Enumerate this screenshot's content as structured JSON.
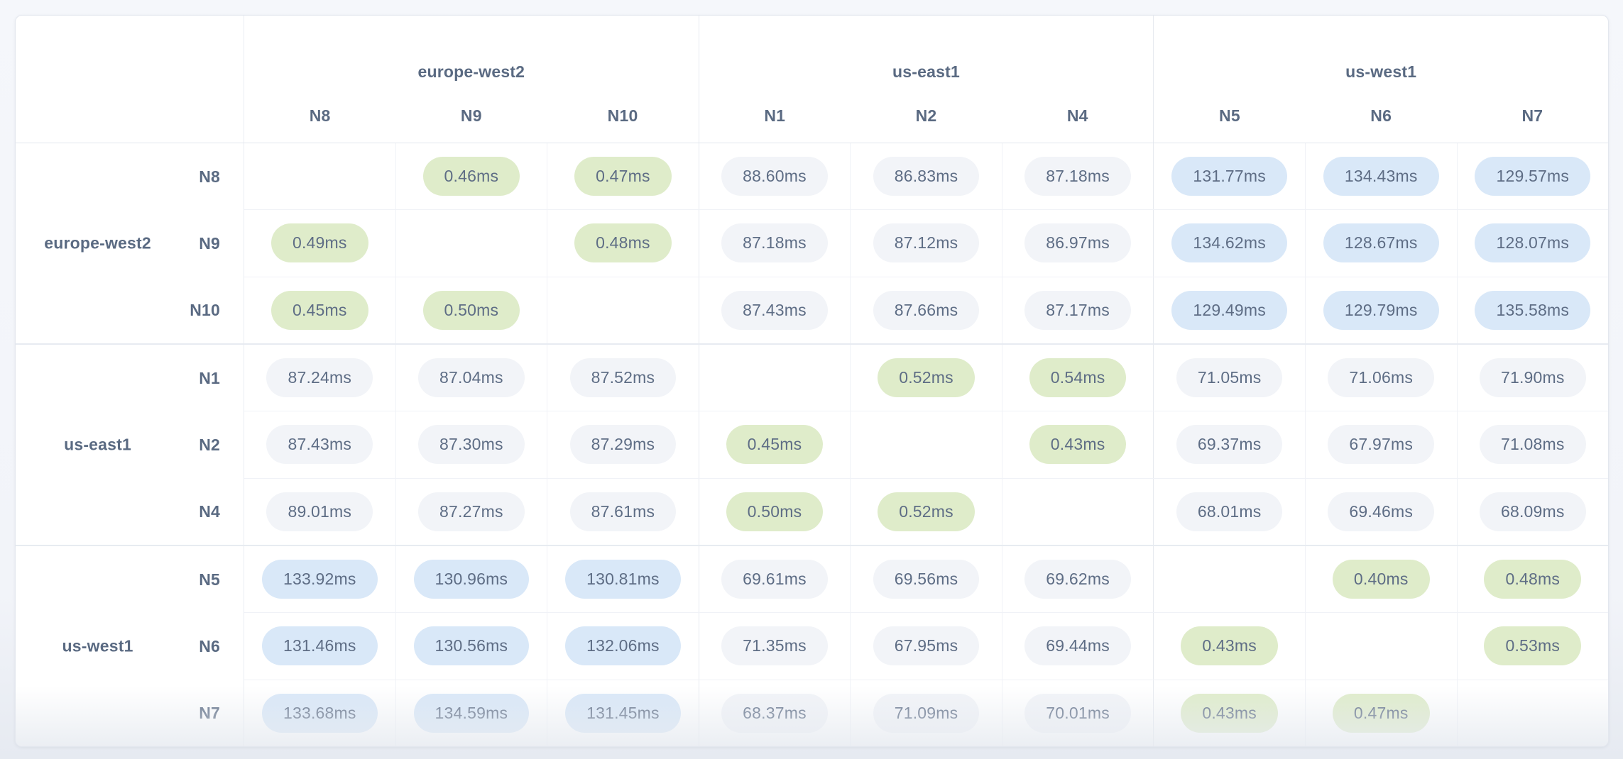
{
  "widget": {
    "title": "inter-node-latency-matrix",
    "unit": "ms"
  },
  "colors": {
    "pill_green": "#dfecca",
    "pill_gray": "#f2f4f8",
    "pill_blue": "#d9e8f8",
    "label_text": "#5a6a82",
    "pill_text": "#5e6d85",
    "card_background": "#ffffff",
    "page_background": "#f3f5f9"
  },
  "tone_rules": {
    "green_below_ms": 1,
    "blue_at_or_above_ms": 100
  },
  "matrix": {
    "column_groups": [
      {
        "region": "europe-west2",
        "nodes": [
          "N8",
          "N9",
          "N10"
        ]
      },
      {
        "region": "us-east1",
        "nodes": [
          "N1",
          "N2",
          "N4"
        ]
      },
      {
        "region": "us-west1",
        "nodes": [
          "N5",
          "N6",
          "N7"
        ]
      }
    ],
    "row_groups": [
      {
        "region": "europe-west2",
        "rows": [
          {
            "node": "N8",
            "cells": [
              "",
              "0.46ms",
              "0.47ms",
              "88.60ms",
              "86.83ms",
              "87.18ms",
              "131.77ms",
              "134.43ms",
              "129.57ms"
            ]
          },
          {
            "node": "N9",
            "cells": [
              "0.49ms",
              "",
              "0.48ms",
              "87.18ms",
              "87.12ms",
              "86.97ms",
              "134.62ms",
              "128.67ms",
              "128.07ms"
            ]
          },
          {
            "node": "N10",
            "cells": [
              "0.45ms",
              "0.50ms",
              "",
              "87.43ms",
              "87.66ms",
              "87.17ms",
              "129.49ms",
              "129.79ms",
              "135.58ms"
            ]
          }
        ]
      },
      {
        "region": "us-east1",
        "rows": [
          {
            "node": "N1",
            "cells": [
              "87.24ms",
              "87.04ms",
              "87.52ms",
              "",
              "0.52ms",
              "0.54ms",
              "71.05ms",
              "71.06ms",
              "71.90ms"
            ]
          },
          {
            "node": "N2",
            "cells": [
              "87.43ms",
              "87.30ms",
              "87.29ms",
              "0.45ms",
              "",
              "0.43ms",
              "69.37ms",
              "67.97ms",
              "71.08ms"
            ]
          },
          {
            "node": "N4",
            "cells": [
              "89.01ms",
              "87.27ms",
              "87.61ms",
              "0.50ms",
              "0.52ms",
              "",
              "68.01ms",
              "69.46ms",
              "68.09ms"
            ]
          }
        ]
      },
      {
        "region": "us-west1",
        "rows": [
          {
            "node": "N5",
            "cells": [
              "133.92ms",
              "130.96ms",
              "130.81ms",
              "69.61ms",
              "69.56ms",
              "69.62ms",
              "",
              "0.40ms",
              "0.48ms"
            ]
          },
          {
            "node": "N6",
            "cells": [
              "131.46ms",
              "130.56ms",
              "132.06ms",
              "71.35ms",
              "67.95ms",
              "69.44ms",
              "0.43ms",
              "",
              "0.53ms"
            ]
          },
          {
            "node": "N7",
            "cells": [
              "133.68ms",
              "134.59ms",
              "131.45ms",
              "68.37ms",
              "71.09ms",
              "70.01ms",
              "0.43ms",
              "0.47ms",
              ""
            ]
          }
        ]
      }
    ]
  }
}
